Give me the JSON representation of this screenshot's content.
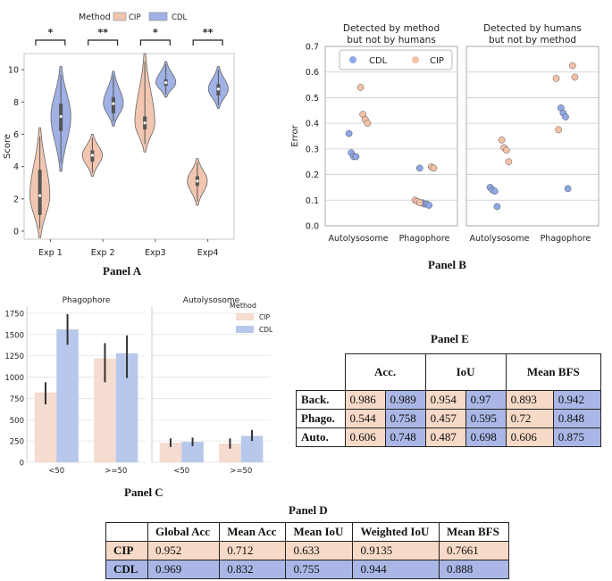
{
  "colors": {
    "cip": "#f2c6b0",
    "cdl": "#9fb1e5",
    "cip_dot": "#f4c1a8",
    "cdl_dot": "#8fa7e6",
    "cip_bar": "#f5dcd0",
    "cdl_bar": "#b8c7ec"
  },
  "captions": {
    "a": "Panel A",
    "b": "Panel B",
    "c": "Panel C",
    "d": "Panel D",
    "e": "Panel E"
  },
  "chart_data": [
    {
      "id": "panelA",
      "type": "violin",
      "legend_title": "Method",
      "legend": [
        "CIP",
        "CDL"
      ],
      "ylabel": "Score",
      "ylim": [
        -0.5,
        11
      ],
      "yticks": [
        0,
        2,
        4,
        6,
        8,
        10
      ],
      "categories": [
        "Exp 1",
        "Exp 2",
        "Exp3",
        "Exp4"
      ],
      "significance": [
        "*",
        "**",
        "*",
        "**"
      ],
      "series": [
        {
          "name": "CIP",
          "medians": [
            2.2,
            4.7,
            6.7,
            3.1
          ],
          "q1": [
            1.0,
            4.3,
            6.3,
            2.8
          ],
          "q3": [
            3.8,
            5.0,
            7.1,
            3.4
          ],
          "min": [
            -0.4,
            3.4,
            4.9,
            1.6
          ],
          "max": [
            6.4,
            6.0,
            11.0,
            4.5
          ]
        },
        {
          "name": "CDL",
          "medians": [
            7.1,
            7.9,
            9.2,
            8.8
          ],
          "q1": [
            6.2,
            7.3,
            9.0,
            8.4
          ],
          "q3": [
            7.9,
            8.3,
            9.4,
            9.1
          ],
          "min": [
            3.7,
            6.5,
            8.3,
            7.6
          ],
          "max": [
            10.2,
            9.9,
            10.5,
            10.2
          ]
        }
      ]
    },
    {
      "id": "panelB",
      "type": "strip",
      "ylabel": "Error",
      "ylim": [
        0,
        0.7
      ],
      "yticks": [
        "0.0",
        "0.1",
        "0.2",
        "0.3",
        "0.4",
        "0.5",
        "0.6",
        "0.7"
      ],
      "legend": [
        "CDL",
        "CIP"
      ],
      "facets": [
        {
          "title": "Detected by method\nbut not by humans",
          "categories": [
            "Autolysosome",
            "Phagophore"
          ],
          "CIP": [
            [
              0.54,
              0.435,
              0.415,
              0.4
            ],
            [
              0.23,
              0.225,
              0.1,
              0.095,
              0.09
            ]
          ],
          "CDL": [
            [
              0.36,
              0.285,
              0.27,
              0.27
            ],
            [
              0.225,
              0.09,
              0.085,
              0.085,
              0.08
            ]
          ]
        },
        {
          "title": "Detected by humans\nbut not by method",
          "categories": [
            "Autolysosome",
            "Phagophore"
          ],
          "CIP": [
            [
              0.335,
              0.305,
              0.295,
              0.25
            ],
            [
              0.625,
              0.58,
              0.575,
              0.375
            ]
          ],
          "CDL": [
            [
              0.15,
              0.14,
              0.135,
              0.075
            ],
            [
              0.46,
              0.44,
              0.425,
              0.145
            ]
          ]
        }
      ]
    },
    {
      "id": "panelC",
      "type": "bar",
      "legend_title": "Method",
      "legend": [
        "CIP",
        "CDL"
      ],
      "ylim": [
        0,
        1750
      ],
      "yticks": [
        0,
        250,
        500,
        750,
        1000,
        1250,
        1500,
        1750
      ],
      "facets": [
        {
          "title": "Phagophore",
          "categories": [
            "<50",
            ">=50"
          ],
          "CIP": [
            820,
            1220
          ],
          "CDL": [
            1560,
            1280
          ],
          "CIP_err": [
            [
              680,
              940
            ],
            [
              940,
              1400
            ]
          ],
          "CDL_err": [
            [
              1380,
              1740
            ],
            [
              990,
              1490
            ]
          ]
        },
        {
          "title": "Autolysosome",
          "categories": [
            "<50",
            ">=50"
          ],
          "CIP": [
            230,
            220
          ],
          "CDL": [
            240,
            310
          ],
          "CIP_err": [
            [
              180,
              280
            ],
            [
              160,
              280
            ]
          ],
          "CDL_err": [
            [
              190,
              290
            ],
            [
              250,
              380
            ]
          ]
        }
      ]
    }
  ],
  "tableE": {
    "headers": [
      "Acc.",
      "IoU",
      "Mean BFS"
    ],
    "rows": [
      {
        "label": "Back.",
        "cells": [
          "0.986",
          "0.989",
          "0.954",
          "0.97",
          "0.893",
          "0.942"
        ]
      },
      {
        "label": "Phago.",
        "cells": [
          "0.544",
          "0.758",
          "0.457",
          "0.595",
          "0.72",
          "0.848"
        ]
      },
      {
        "label": "Auto.",
        "cells": [
          "0.606",
          "0.748",
          "0.487",
          "0.698",
          "0.606",
          "0.875"
        ]
      }
    ]
  },
  "tableD": {
    "headers": [
      "",
      "Global Acc",
      "Mean Acc",
      "Mean IoU",
      "Weighted IoU",
      "Mean BFS"
    ],
    "rows": [
      {
        "label": "CIP",
        "cells": [
          "0.952",
          "0.712",
          "0.633",
          "0.9135",
          "0.7661"
        ]
      },
      {
        "label": "CDL",
        "cells": [
          "0.969",
          "0.832",
          "0.755",
          "0.944",
          "0.888"
        ]
      }
    ]
  }
}
